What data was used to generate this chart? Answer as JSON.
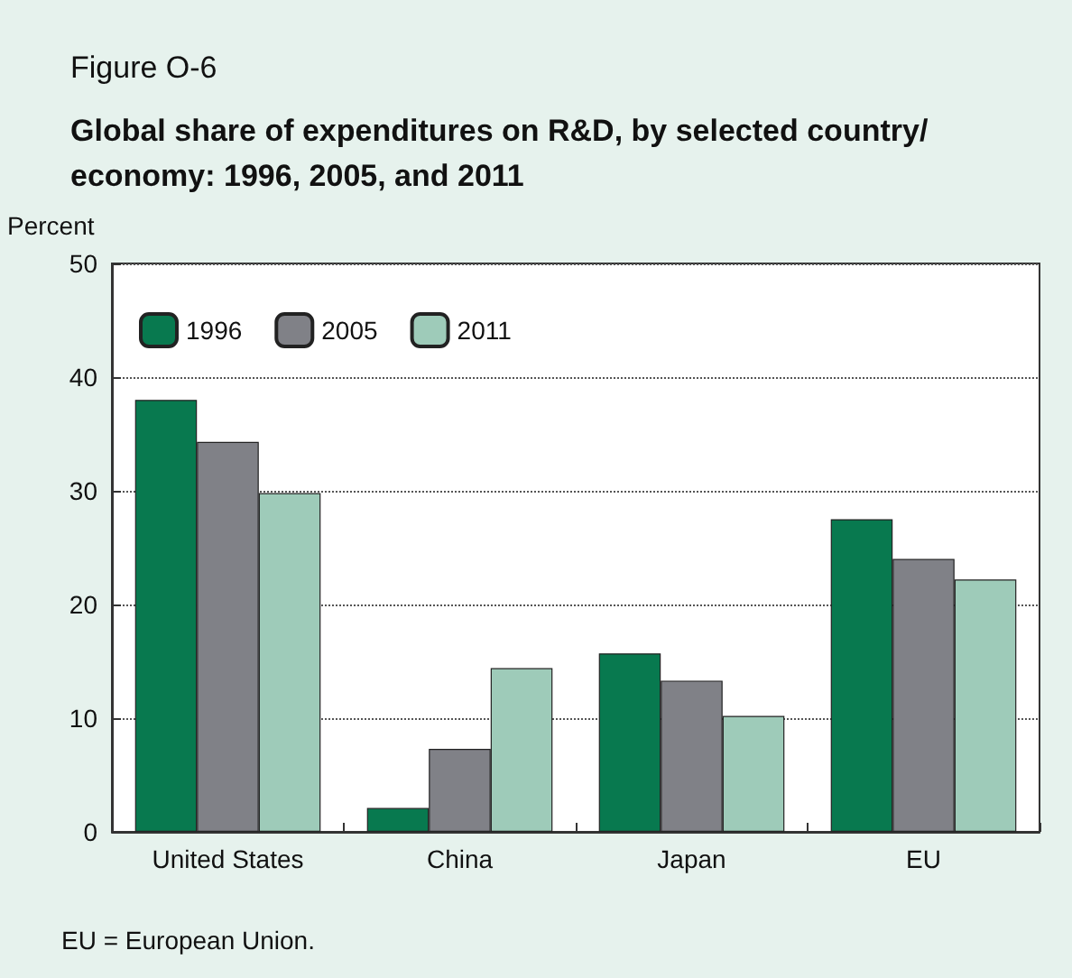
{
  "chart_data": {
    "type": "bar",
    "title": "Figure O-6",
    "subtitle": "Global share of expenditures on R&D, by selected country/economy: 1996, 2005, and 2011",
    "ylabel": "Percent",
    "categories": [
      "United States",
      "China",
      "Japan",
      "EU"
    ],
    "series": [
      {
        "name": "1996",
        "color": "#08794f",
        "values": [
          38,
          2.1,
          15.7,
          27.5
        ]
      },
      {
        "name": "2005",
        "color": "#808187",
        "values": [
          34.3,
          7.3,
          13.3,
          24
        ]
      },
      {
        "name": "2011",
        "color": "#9ecbb9",
        "values": [
          29.8,
          14.4,
          10.2,
          22.2
        ]
      }
    ],
    "ylim": [
      0,
      50
    ],
    "yticks": [
      0,
      10,
      20,
      30,
      40,
      50
    ],
    "grid": "y",
    "legend": "top left",
    "annotations": [
      "EU = European Union."
    ]
  }
}
